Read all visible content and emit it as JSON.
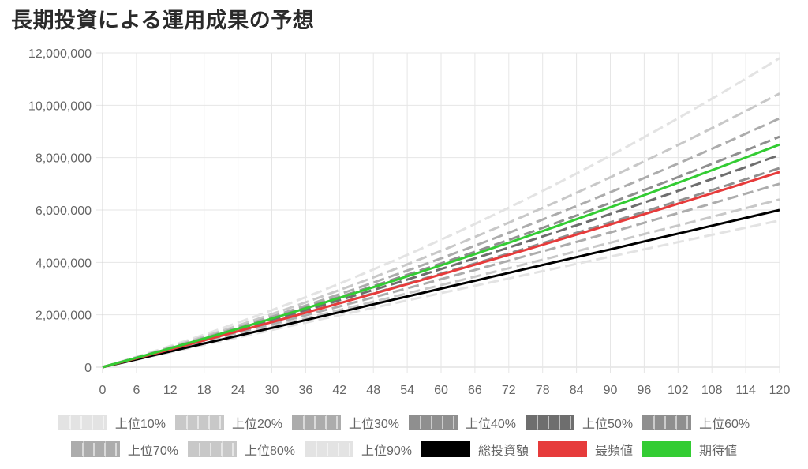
{
  "title": "長期投資による運用成果の予想",
  "chart_data": {
    "type": "line",
    "x": [
      0,
      6,
      12,
      18,
      24,
      30,
      36,
      42,
      48,
      54,
      60,
      66,
      72,
      78,
      84,
      90,
      96,
      102,
      108,
      114,
      120
    ],
    "xlim": [
      0,
      120
    ],
    "ylim": [
      0,
      12000000
    ],
    "y_ticks": [
      "0",
      "2,000,000",
      "4,000,000",
      "6,000,000",
      "8,000,000",
      "10,000,000",
      "12,000,000"
    ],
    "x_ticks": [
      "0",
      "6",
      "12",
      "18",
      "24",
      "30",
      "36",
      "42",
      "48",
      "54",
      "60",
      "66",
      "72",
      "78",
      "84",
      "90",
      "96",
      "102",
      "108",
      "114",
      "120"
    ],
    "grid": true,
    "legend_position": "bottom",
    "series": [
      {
        "name": "上位10%",
        "color": "#e3e3e3",
        "dashed": true,
        "start": [
          0,
          0
        ],
        "end": [
          120,
          11800000
        ],
        "curve": 0.35
      },
      {
        "name": "上位20%",
        "color": "#c8c8c8",
        "dashed": true,
        "start": [
          0,
          0
        ],
        "end": [
          120,
          10450000
        ],
        "curve": 0.3
      },
      {
        "name": "上位30%",
        "color": "#acacac",
        "dashed": true,
        "start": [
          0,
          0
        ],
        "end": [
          120,
          9500000
        ],
        "curve": 0.25
      },
      {
        "name": "上位40%",
        "color": "#8f8f8f",
        "dashed": true,
        "start": [
          0,
          0
        ],
        "end": [
          120,
          8800000
        ],
        "curve": 0.2
      },
      {
        "name": "上位50%",
        "color": "#6e6e6e",
        "dashed": true,
        "start": [
          0,
          0
        ],
        "end": [
          120,
          8100000
        ],
        "curve": 0.15
      },
      {
        "name": "上位60%",
        "color": "#8f8f8f",
        "dashed": true,
        "start": [
          0,
          0
        ],
        "end": [
          120,
          7600000
        ],
        "curve": 0.12
      },
      {
        "name": "上位70%",
        "color": "#acacac",
        "dashed": true,
        "start": [
          0,
          0
        ],
        "end": [
          120,
          7000000
        ],
        "curve": 0.08
      },
      {
        "name": "上位80%",
        "color": "#c8c8c8",
        "dashed": true,
        "start": [
          0,
          0
        ],
        "end": [
          120,
          6400000
        ],
        "curve": 0.04
      },
      {
        "name": "上位90%",
        "color": "#e3e3e3",
        "dashed": true,
        "start": [
          0,
          0
        ],
        "end": [
          120,
          5600000
        ],
        "curve": -0.02
      },
      {
        "name": "総投資額",
        "color": "#000000",
        "dashed": false,
        "start": [
          0,
          0
        ],
        "end": [
          120,
          6000000
        ],
        "curve": 0
      },
      {
        "name": "最頻値",
        "color": "#e63b3b",
        "dashed": false,
        "start": [
          0,
          0
        ],
        "end": [
          120,
          7450000
        ],
        "curve": 0.1
      },
      {
        "name": "期待値",
        "color": "#33cc33",
        "dashed": false,
        "start": [
          0,
          0
        ],
        "end": [
          120,
          8500000
        ],
        "curve": 0.17
      }
    ]
  }
}
